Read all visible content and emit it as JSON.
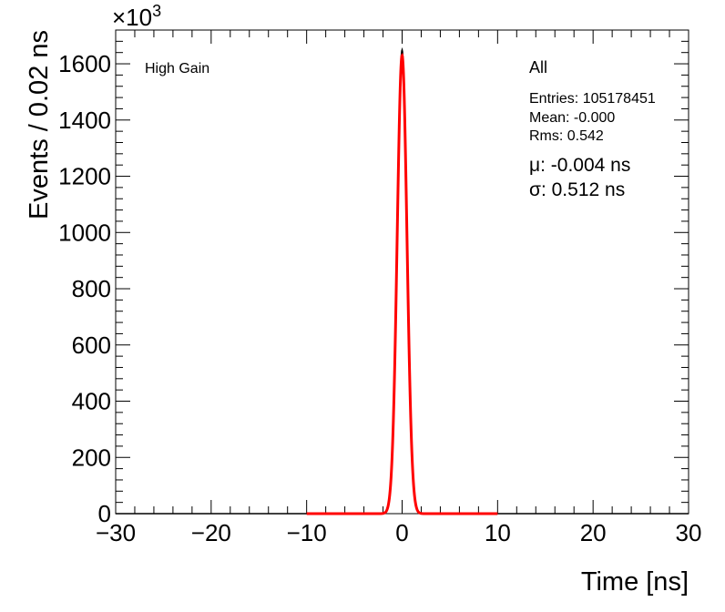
{
  "chart_data": {
    "type": "line",
    "xlabel": "Time [ns]",
    "ylabel": "Events / 0.02 ns",
    "y_multiplier": "×10",
    "y_multiplier_exp": "3",
    "xlim": [
      -30,
      30
    ],
    "ylim": [
      0,
      1720
    ],
    "x_ticks": [
      -30,
      -20,
      -10,
      0,
      10,
      20,
      30
    ],
    "y_ticks": [
      0,
      200,
      400,
      600,
      800,
      1000,
      1200,
      1400,
      1600
    ],
    "grid": false,
    "label_left": "High Gain",
    "legend": {
      "title": "All",
      "entries_text": "Entries: 105178451",
      "mean_text": "Mean: -0.000",
      "rms_text": "Rms: 0.542",
      "mu_text": "μ: -0.004 ns",
      "sigma_text": "σ: 0.512 ns"
    },
    "series": [
      {
        "style": "histogram",
        "color": "#000000",
        "peak": 1650,
        "mean": -0.004,
        "sigma": 0.512,
        "x_range": [
          -30,
          30
        ]
      },
      {
        "style": "fit",
        "color": "#ff0000",
        "peak": 1630,
        "mean": -0.004,
        "sigma": 0.512,
        "x_range": [
          -10,
          10
        ]
      }
    ]
  }
}
